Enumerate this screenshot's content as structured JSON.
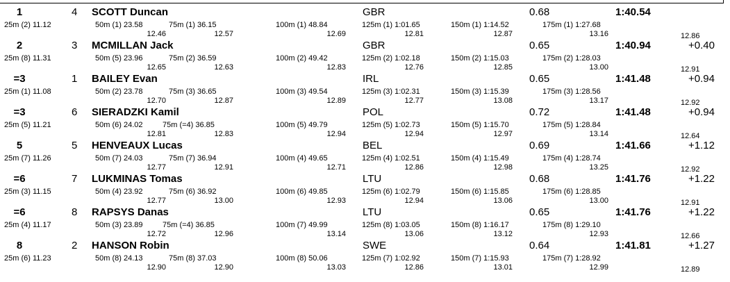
{
  "entries": [
    {
      "rank": "1",
      "lane": "4",
      "name": "SCOTT Duncan",
      "nation": "GBR",
      "reaction": "0.68",
      "final": "1:40.54",
      "behind": "",
      "s25": "25m (2) 11.12",
      "splits": [
        {
          "cum": "50m (1) 23.58",
          "lap": "12.46"
        },
        {
          "cum": "75m (1) 36.15",
          "lap": "12.57"
        },
        {
          "cum": "100m (1) 48.84",
          "lap": "12.69"
        },
        {
          "cum": "125m (1) 1:01.65",
          "lap": "12.81"
        },
        {
          "cum": "150m (1) 1:14.52",
          "lap": "12.87"
        },
        {
          "cum": "175m (1) 1:27.68",
          "lap": "13.16"
        }
      ],
      "last": "12.86"
    },
    {
      "rank": "2",
      "lane": "3",
      "name": "MCMILLAN Jack",
      "nation": "GBR",
      "reaction": "0.65",
      "final": "1:40.94",
      "behind": "+0.40",
      "s25": "25m (8) 11.31",
      "splits": [
        {
          "cum": "50m (5) 23.96",
          "lap": "12.65"
        },
        {
          "cum": "75m (2) 36.59",
          "lap": "12.63"
        },
        {
          "cum": "100m (2) 49.42",
          "lap": "12.83"
        },
        {
          "cum": "125m (2) 1:02.18",
          "lap": "12.76"
        },
        {
          "cum": "150m (2) 1:15.03",
          "lap": "12.85"
        },
        {
          "cum": "175m (2) 1:28.03",
          "lap": "13.00"
        }
      ],
      "last": "12.91"
    },
    {
      "rank": "=3",
      "lane": "1",
      "name": "BAILEY Evan",
      "nation": "IRL",
      "reaction": "0.65",
      "final": "1:41.48",
      "behind": "+0.94",
      "s25": "25m (1) 11.08",
      "splits": [
        {
          "cum": "50m (2) 23.78",
          "lap": "12.70"
        },
        {
          "cum": "75m (3) 36.65",
          "lap": "12.87"
        },
        {
          "cum": "100m (3) 49.54",
          "lap": "12.89"
        },
        {
          "cum": "125m (3) 1:02.31",
          "lap": "12.77"
        },
        {
          "cum": "150m (3) 1:15.39",
          "lap": "13.08"
        },
        {
          "cum": "175m (3) 1:28.56",
          "lap": "13.17"
        }
      ],
      "last": "12.92"
    },
    {
      "rank": "=3",
      "lane": "6",
      "name": "SIERADZKI Kamil",
      "nation": "POL",
      "reaction": "0.72",
      "final": "1:41.48",
      "behind": "+0.94",
      "s25": "25m (5) 11.21",
      "splits": [
        {
          "cum": "50m (6) 24.02",
          "lap": "12.81"
        },
        {
          "cum": "75m (=4) 36.85",
          "lap": "12.83"
        },
        {
          "cum": "100m (5) 49.79",
          "lap": "12.94"
        },
        {
          "cum": "125m (5) 1:02.73",
          "lap": "12.94"
        },
        {
          "cum": "150m (5) 1:15.70",
          "lap": "12.97"
        },
        {
          "cum": "175m (5) 1:28.84",
          "lap": "13.14"
        }
      ],
      "last": "12.64"
    },
    {
      "rank": "5",
      "lane": "5",
      "name": "HENVEAUX Lucas",
      "nation": "BEL",
      "reaction": "0.69",
      "final": "1:41.66",
      "behind": "+1.12",
      "s25": "25m (7) 11.26",
      "splits": [
        {
          "cum": "50m (7) 24.03",
          "lap": "12.77"
        },
        {
          "cum": "75m (7) 36.94",
          "lap": "12.91"
        },
        {
          "cum": "100m (4) 49.65",
          "lap": "12.71"
        },
        {
          "cum": "125m (4) 1:02.51",
          "lap": "12.86"
        },
        {
          "cum": "150m (4) 1:15.49",
          "lap": "12.98"
        },
        {
          "cum": "175m (4) 1:28.74",
          "lap": "13.25"
        }
      ],
      "last": "12.92"
    },
    {
      "rank": "=6",
      "lane": "7",
      "name": "LUKMINAS Tomas",
      "nation": "LTU",
      "reaction": "0.68",
      "final": "1:41.76",
      "behind": "+1.22",
      "s25": "25m (3) 11.15",
      "splits": [
        {
          "cum": "50m (4) 23.92",
          "lap": "12.77"
        },
        {
          "cum": "75m (6) 36.92",
          "lap": "13.00"
        },
        {
          "cum": "100m (6) 49.85",
          "lap": "12.93"
        },
        {
          "cum": "125m (6) 1:02.79",
          "lap": "12.94"
        },
        {
          "cum": "150m (6) 1:15.85",
          "lap": "13.06"
        },
        {
          "cum": "175m (6) 1:28.85",
          "lap": "13.00"
        }
      ],
      "last": "12.91"
    },
    {
      "rank": "=6",
      "lane": "8",
      "name": "RAPSYS Danas",
      "nation": "LTU",
      "reaction": "0.65",
      "final": "1:41.76",
      "behind": "+1.22",
      "s25": "25m (4) 11.17",
      "splits": [
        {
          "cum": "50m (3) 23.89",
          "lap": "12.72"
        },
        {
          "cum": "75m (=4) 36.85",
          "lap": "12.96"
        },
        {
          "cum": "100m (7) 49.99",
          "lap": "13.14"
        },
        {
          "cum": "125m (8) 1:03.05",
          "lap": "13.06"
        },
        {
          "cum": "150m (8) 1:16.17",
          "lap": "13.12"
        },
        {
          "cum": "175m (8) 1:29.10",
          "lap": "12.93"
        }
      ],
      "last": "12.66"
    },
    {
      "rank": "8",
      "lane": "2",
      "name": "HANSON Robin",
      "nation": "SWE",
      "reaction": "0.64",
      "final": "1:41.81",
      "behind": "+1.27",
      "s25": "25m (6) 11.23",
      "splits": [
        {
          "cum": "50m (8) 24.13",
          "lap": "12.90"
        },
        {
          "cum": "75m (8) 37.03",
          "lap": "12.90"
        },
        {
          "cum": "100m (8) 50.06",
          "lap": "13.03"
        },
        {
          "cum": "125m (7) 1:02.92",
          "lap": "12.86"
        },
        {
          "cum": "150m (7) 1:15.93",
          "lap": "13.01"
        },
        {
          "cum": "175m (7) 1:28.92",
          "lap": "12.99"
        }
      ],
      "last": "12.89"
    }
  ]
}
